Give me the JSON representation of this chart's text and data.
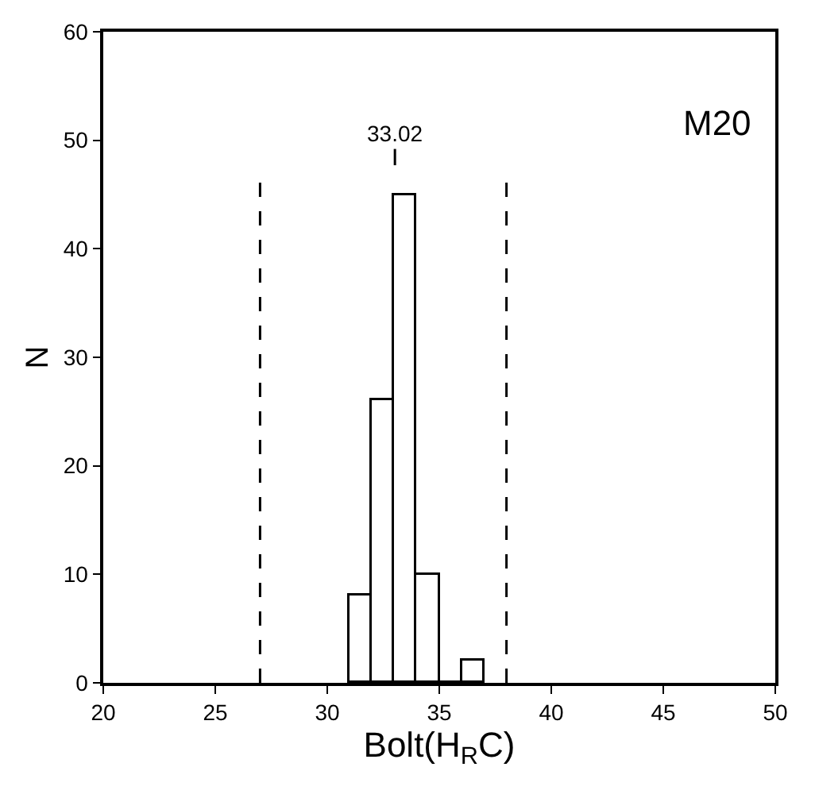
{
  "chart_data": {
    "type": "histogram",
    "xlabel": "Bolt(H$_{R}$C)",
    "ylabel": "N",
    "bins": [
      31,
      32,
      33,
      34,
      35,
      36,
      37
    ],
    "values": [
      8,
      26,
      45,
      10,
      0,
      2
    ],
    "color": "#000000",
    "xlim": [
      20,
      50
    ],
    "ylim": [
      0,
      60
    ],
    "xticks": [
      20,
      25,
      30,
      35,
      40,
      45,
      50
    ],
    "yticks": [
      0,
      10,
      20,
      30,
      40,
      50,
      60
    ],
    "ref_lines": [
      {
        "axis": "x",
        "value": 27,
        "line_style": "dashed"
      },
      {
        "axis": "x",
        "value": 38,
        "line_style": "dashed"
      },
      {
        "axis": "x",
        "value": 33.02,
        "label": "33.02",
        "line_style": "solid"
      }
    ],
    "annotations": [
      "M20"
    ]
  }
}
